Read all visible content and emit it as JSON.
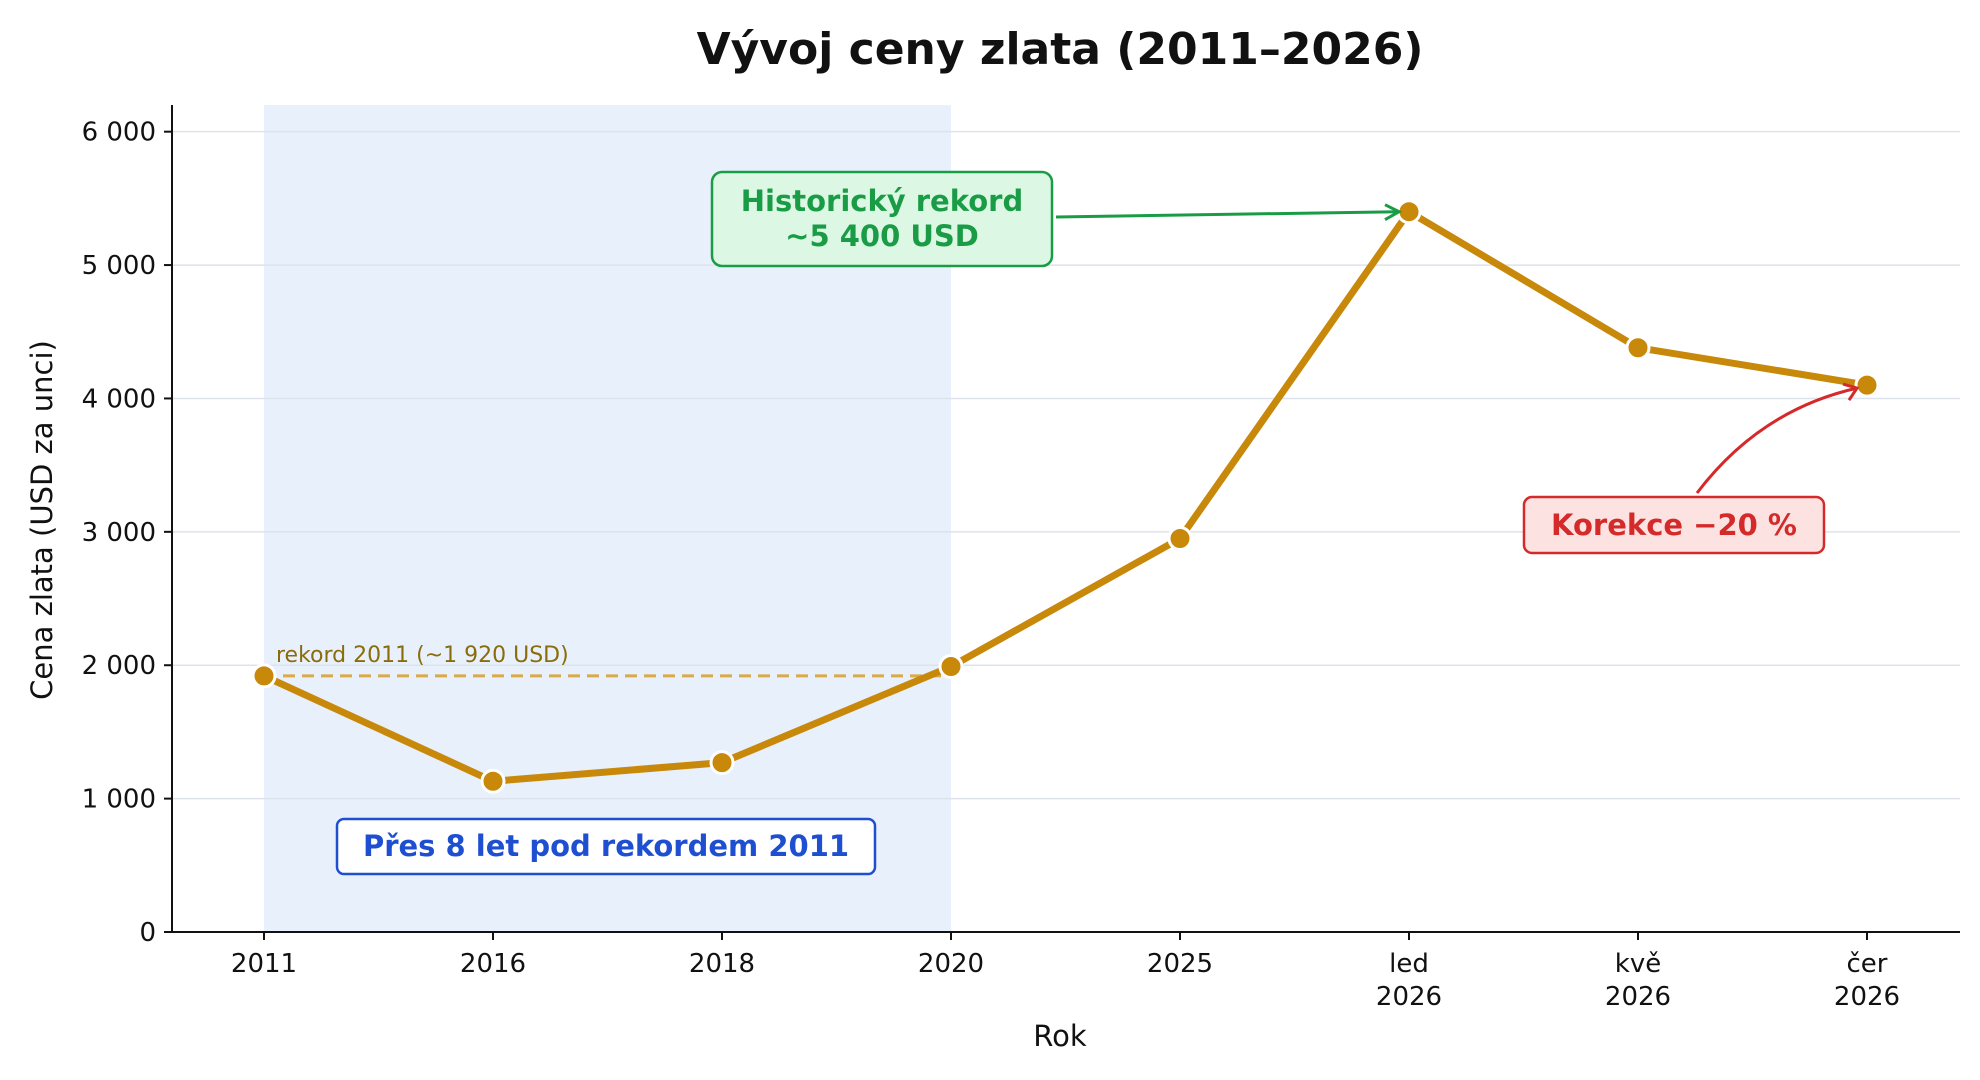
{
  "chart_data": {
    "type": "line",
    "title": "Vývoj ceny zlata (2011–2026)",
    "xlabel": "Rok",
    "ylabel": "Cena zlata (USD za unci)",
    "ylim": [
      0,
      6200
    ],
    "yticks": [
      0,
      1000,
      2000,
      3000,
      4000,
      5000,
      6000
    ],
    "ytick_labels": [
      "0",
      "1 000",
      "2 000",
      "3 000",
      "4 000",
      "5 000",
      "6 000"
    ],
    "grid": "horizontal",
    "categories": [
      [
        "2011"
      ],
      [
        "2016"
      ],
      [
        "2018"
      ],
      [
        "2020"
      ],
      [
        "2025"
      ],
      [
        "led",
        "2026"
      ],
      [
        "kvě",
        "2026"
      ],
      [
        "čer",
        "2026"
      ]
    ],
    "series": [
      {
        "values": [
          1920,
          1130,
          1270,
          1990,
          2950,
          5400,
          4380,
          4100
        ]
      }
    ],
    "annotations": {
      "record_2011_label": "rekord 2011 (~1 920 USD)",
      "record_2011_value": 1920,
      "shaded_span": [
        "2011",
        "2020"
      ],
      "below_record_text": "Přes 8 let pod rekordem 2011",
      "peak_lines": [
        "Historický rekord",
        "~5 400 USD"
      ],
      "correction_text": "Korekce −20 %"
    },
    "colors": {
      "line": "#c8880a",
      "shade": "#e8f0fc",
      "record_dash": "#d9aa46",
      "record_text": "#8a6d0a",
      "blue": "#1f4fd1",
      "blue_bg": "#ffffff",
      "green": "#1a9c46",
      "green_bg": "#dcf8e4",
      "red": "#d42a2a",
      "red_bg": "#fde2e2"
    }
  }
}
